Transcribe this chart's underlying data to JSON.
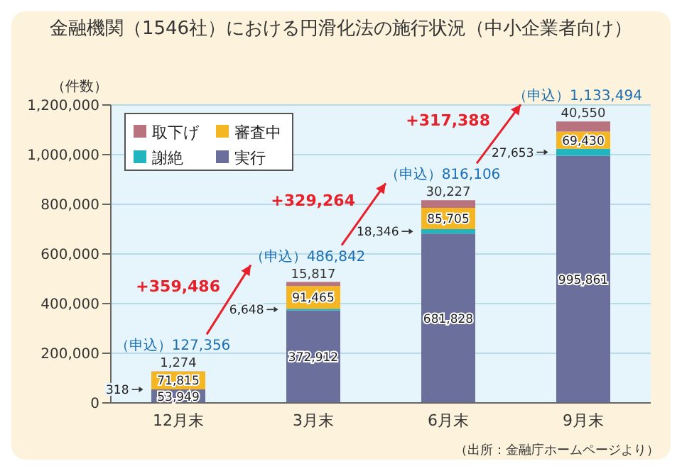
{
  "chart_data": {
    "type": "bar",
    "stacked": true,
    "title": "金融機関（1546社）における円滑化法の施行状況（中小企業者向け）",
    "ylabel": "（件数）",
    "categories": [
      "12月末",
      "3月末",
      "6月末",
      "9月末"
    ],
    "series": [
      {
        "name": "実行",
        "color": "#6a6f9c",
        "values": [
          53949,
          372912,
          681828,
          995861
        ],
        "value_labels": [
          "53,949",
          "372,912",
          "681,828",
          "995,861"
        ]
      },
      {
        "name": "謝絶",
        "color": "#22b5c0",
        "values": [
          318,
          6648,
          18346,
          27653
        ],
        "value_labels": [
          "318",
          "6,648",
          "18,346",
          "27,653"
        ]
      },
      {
        "name": "審査中",
        "color": "#f5b624",
        "values": [
          71815,
          91465,
          85705,
          69430
        ],
        "value_labels": [
          "71,815",
          "91,465",
          "85,705",
          "69,430"
        ]
      },
      {
        "name": "取下げ",
        "color": "#b9737f",
        "values": [
          1274,
          15817,
          30227,
          40550
        ],
        "value_labels": [
          "1,274",
          "15,817",
          "30,227",
          "40,550"
        ]
      }
    ],
    "totals": [
      "（申込）127,356",
      "（申込）486,842",
      "（申込）816,106",
      "（申込）1,133,494"
    ],
    "annotations": [
      "+359,486",
      "+329,264",
      "+317,388",
      "（出所：金融庁ホームページより）"
    ],
    "ylim": [
      0,
      1200000
    ],
    "yticks": [
      0,
      {
        "value": 200000,
        "label": "200,000"
      },
      {
        "value": 400000,
        "label": "400,000"
      },
      {
        "value": 600000,
        "label": "600,000"
      },
      {
        "value": 800000,
        "label": "800,000"
      },
      {
        "value": 1000000,
        "label": "1,000,000"
      },
      {
        "value": 1200000,
        "label": "1,200,000"
      }
    ],
    "grid": "y",
    "legend": "top left"
  }
}
